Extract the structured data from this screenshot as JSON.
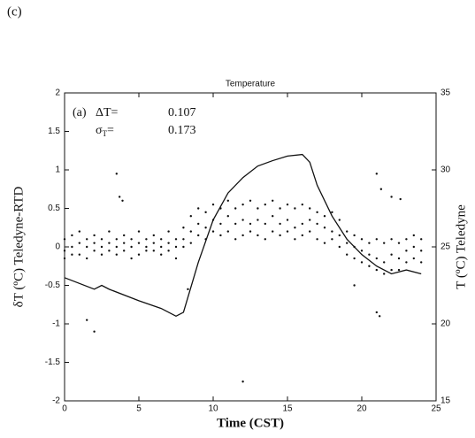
{
  "figure_label": "(c)",
  "chart_data": {
    "type": "scatter",
    "title": "Temperature",
    "xlabel": "Time (CST)",
    "ylabel": "δT (ºC)   Teledyne-RTD",
    "y2label": "T (ºC)   Teledyne",
    "annotations": {
      "panel": "(a)",
      "delta_label": "ΔT=",
      "delta_value": "0.107",
      "sigma_label": "σ",
      "sigma_sub": "T",
      "sigma_eq": "=",
      "sigma_value": "0.173"
    },
    "xlim": [
      0,
      25
    ],
    "xticks": [
      0,
      5,
      10,
      15,
      20,
      25
    ],
    "ylim": [
      -2,
      2
    ],
    "yticks": [
      -2,
      -1.5,
      -1,
      -0.5,
      0,
      0.5,
      1,
      1.5,
      2
    ],
    "y2lim": [
      15,
      35
    ],
    "y2ticks": [
      15,
      20,
      25,
      30,
      35
    ],
    "series": [
      {
        "type": "scatter",
        "color": "#111111",
        "x": [
          0,
          0,
          0,
          0.5,
          0.5,
          0.5,
          1,
          1,
          1,
          1.5,
          1.5,
          1.5,
          2,
          2,
          2,
          2.5,
          2.5,
          2.5,
          3,
          3,
          3,
          3.5,
          3.5,
          3.5,
          4,
          4,
          4,
          4.5,
          4.5,
          4.5,
          5,
          5,
          5,
          5.5,
          5.5,
          5.5,
          6,
          6,
          6,
          6.5,
          6.5,
          6.5,
          7,
          7,
          7,
          7.5,
          7.5,
          7.5,
          8,
          8,
          8,
          8.5,
          8.5,
          8.5,
          9,
          9,
          9,
          9.5,
          9.5,
          9.5,
          10,
          10,
          10,
          10.5,
          10.5,
          10.5,
          11,
          11,
          11,
          11.5,
          11.5,
          11.5,
          12,
          12,
          12,
          12.5,
          12.5,
          12.5,
          13,
          13,
          13,
          13.5,
          13.5,
          13.5,
          14,
          14,
          14,
          14.5,
          14.5,
          14.5,
          15,
          15,
          15,
          15.5,
          15.5,
          15.5,
          16,
          16,
          16,
          16.5,
          16.5,
          16.5,
          17,
          17,
          17,
          17.5,
          17.5,
          17.5,
          18,
          18,
          18,
          18.5,
          18.5,
          18.5,
          19,
          19,
          19,
          19.5,
          19.5,
          19.5,
          20,
          20,
          20,
          20.5,
          20.5,
          20.5,
          21,
          21,
          21,
          21.5,
          21.5,
          21.5,
          22,
          22,
          22,
          22.5,
          22.5,
          22.5,
          23,
          23,
          23,
          23.5,
          23.5,
          23.5,
          24,
          24,
          24,
          3.5,
          3.7,
          3.9,
          21,
          21.3,
          22,
          22.6,
          1.5,
          2,
          21,
          21.2,
          12,
          8.3,
          19.5
        ],
        "values": [
          0.1,
          -0.05,
          -0.15,
          0.15,
          0,
          -0.1,
          0.05,
          -0.1,
          0.2,
          0.1,
          0,
          -0.15,
          0.15,
          -0.05,
          0.05,
          0.1,
          0,
          -0.1,
          0.2,
          0.05,
          -0.05,
          0.1,
          -0.1,
          0,
          0.15,
          0.05,
          -0.05,
          0.1,
          0,
          -0.15,
          0.2,
          0.05,
          -0.1,
          0.1,
          0,
          -0.05,
          0.15,
          -0.05,
          0.05,
          0.1,
          0,
          -0.1,
          0.2,
          0.05,
          -0.05,
          0.1,
          0,
          -0.15,
          0.25,
          0.1,
          0,
          0.4,
          0.2,
          0.05,
          0.5,
          0.3,
          0.15,
          0.45,
          0.25,
          0.1,
          0.55,
          0.35,
          0.2,
          0.5,
          0.3,
          0.15,
          0.6,
          0.4,
          0.2,
          0.5,
          0.3,
          0.1,
          0.55,
          0.35,
          0.15,
          0.6,
          0.3,
          0.2,
          0.5,
          0.35,
          0.15,
          0.55,
          0.3,
          0.1,
          0.6,
          0.4,
          0.2,
          0.5,
          0.3,
          0.15,
          0.55,
          0.35,
          0.2,
          0.5,
          0.25,
          0.1,
          0.55,
          0.3,
          0.15,
          0.5,
          0.35,
          0.2,
          0.45,
          0.3,
          0.1,
          0.4,
          0.25,
          0.05,
          0.45,
          0.2,
          0.1,
          0.35,
          0.15,
          0,
          0.2,
          0.05,
          -0.1,
          0.15,
          0,
          -0.15,
          0.1,
          -0.05,
          -0.2,
          0.05,
          -0.1,
          -0.25,
          0.1,
          -0.15,
          -0.3,
          0.05,
          -0.2,
          -0.35,
          0.1,
          -0.1,
          -0.3,
          0.05,
          -0.15,
          -0.3,
          0.1,
          -0.05,
          -0.2,
          0.15,
          0,
          -0.15,
          0.1,
          -0.05,
          -0.2,
          0.95,
          0.65,
          0.6,
          0.95,
          0.75,
          0.65,
          0.62,
          -0.95,
          -1.1,
          -0.85,
          -0.9,
          -1.75,
          -0.55,
          -0.5
        ]
      },
      {
        "type": "line",
        "axis": "y2",
        "color": "#111111",
        "x": [
          0,
          2,
          2.5,
          3,
          5,
          6.5,
          7.5,
          8,
          9,
          10,
          11,
          12,
          13,
          14,
          15,
          16,
          16.5,
          17,
          18,
          19,
          20,
          21,
          22,
          23,
          24
        ],
        "values": [
          23,
          22.25,
          22.5,
          22.25,
          21.5,
          21,
          20.5,
          20.75,
          24,
          26.75,
          28.5,
          29.5,
          30.25,
          30.6,
          30.9,
          31,
          30.5,
          29,
          27,
          25.5,
          24.5,
          23.75,
          23.25,
          23.5,
          23.25
        ]
      }
    ]
  }
}
